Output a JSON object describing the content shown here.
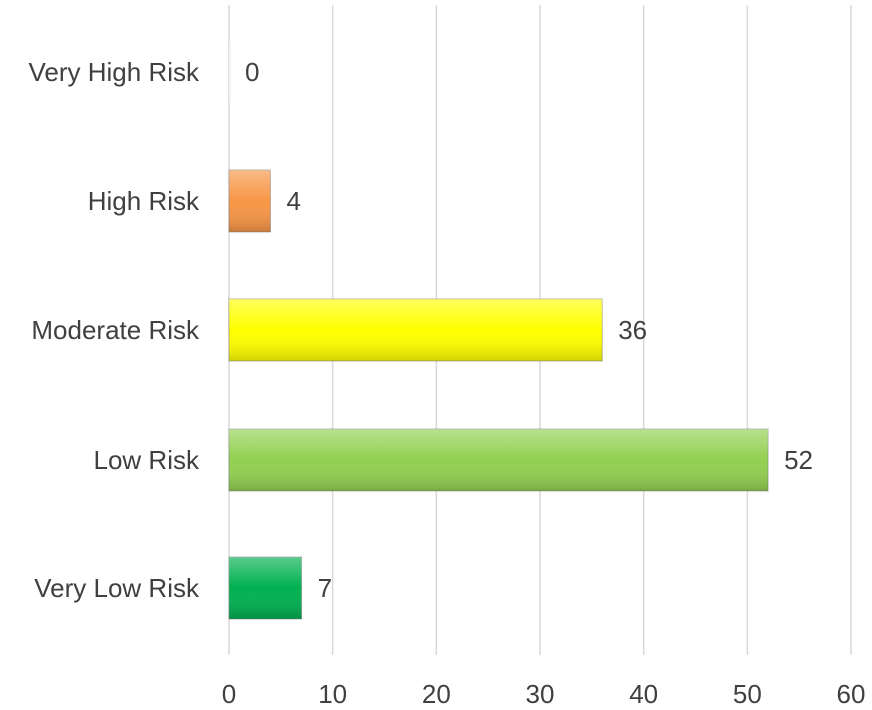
{
  "chart_data": {
    "type": "bar",
    "orientation": "horizontal",
    "categories": [
      "Very High Risk",
      "High Risk",
      "Moderate Risk",
      "Low Risk",
      "Very Low Risk"
    ],
    "values": [
      0,
      4,
      36,
      52,
      7
    ],
    "colors": [
      "#f2f2f2",
      "#f79646",
      "#ffff00",
      "#92d050",
      "#00b050"
    ],
    "title": "",
    "xlabel": "",
    "ylabel": "",
    "xlim": [
      0,
      60
    ],
    "xticks": [
      0,
      10,
      20,
      30,
      40,
      50,
      60
    ],
    "xtick_labels": [
      "0",
      "10",
      "20",
      "30",
      "40",
      "50",
      "60"
    ],
    "data_labels": [
      "0",
      "4",
      "36",
      "52",
      "7"
    ],
    "grid": "vertical",
    "legend": "none"
  }
}
